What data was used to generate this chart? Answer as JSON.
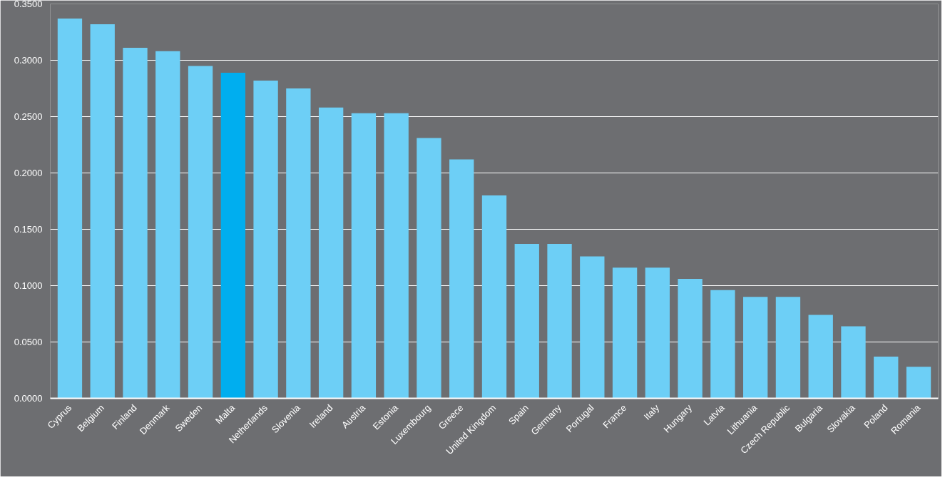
{
  "chart_data": {
    "type": "bar",
    "categories": [
      "Cyprus",
      "Belgium",
      "Finland",
      "Denmark",
      "Sweden",
      "Malta",
      "Netherlands",
      "Slovenia",
      "Ireland",
      "Austria",
      "Estonia",
      "Luxembourg",
      "Greece",
      "United Kingdom",
      "Spain",
      "Germany",
      "Portugal",
      "France",
      "Italy",
      "Hungary",
      "Latvia",
      "Lithuania",
      "Czech Republic",
      "Bulgaria",
      "Slovakia",
      "Poland",
      "Romania"
    ],
    "values": [
      0.337,
      0.332,
      0.311,
      0.308,
      0.295,
      0.289,
      0.282,
      0.275,
      0.258,
      0.253,
      0.253,
      0.231,
      0.212,
      0.18,
      0.137,
      0.137,
      0.126,
      0.116,
      0.116,
      0.106,
      0.096,
      0.09,
      0.09,
      0.074,
      0.064,
      0.037,
      0.028
    ],
    "colors": [
      "#6dcff6",
      "#6dcff6",
      "#6dcff6",
      "#6dcff6",
      "#6dcff6",
      "#00aeef",
      "#6dcff6",
      "#6dcff6",
      "#6dcff6",
      "#6dcff6",
      "#6dcff6",
      "#6dcff6",
      "#6dcff6",
      "#6dcff6",
      "#6dcff6",
      "#6dcff6",
      "#6dcff6",
      "#6dcff6",
      "#6dcff6",
      "#6dcff6",
      "#6dcff6",
      "#6dcff6",
      "#6dcff6",
      "#6dcff6",
      "#6dcff6",
      "#6dcff6",
      "#6dcff6"
    ],
    "ylim": [
      0,
      0.35
    ],
    "yticks": [
      {
        "value": 0,
        "label": "0.0000"
      },
      {
        "value": 0.05,
        "label": "0.0500"
      },
      {
        "value": 0.1,
        "label": "0.1000"
      },
      {
        "value": 0.15,
        "label": "0.1500"
      },
      {
        "value": 0.2,
        "label": "0.2000"
      },
      {
        "value": 0.25,
        "label": "0.2500"
      },
      {
        "value": 0.3,
        "label": "0.3000"
      },
      {
        "value": 0.35,
        "label": "0.3500"
      }
    ],
    "grid": "y"
  }
}
